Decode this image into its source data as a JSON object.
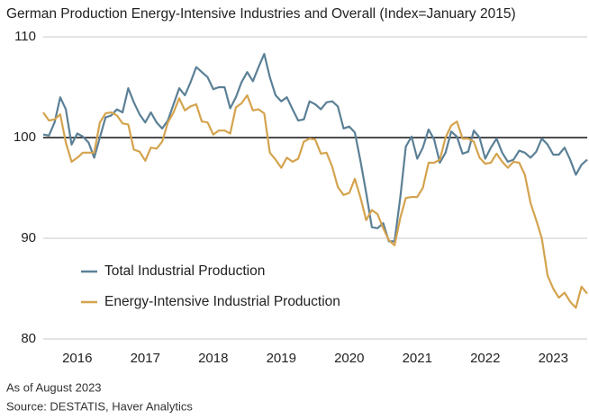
{
  "chart_data": {
    "type": "line",
    "title": "German Production Energy-Intensive Industries and Overall (Index=January 2015)",
    "notes": [
      "As of August 2023",
      "Source: DESTATIS, Haver Analytics"
    ],
    "x": [
      2015.5,
      2015.583,
      2015.667,
      2015.75,
      2015.833,
      2015.917,
      2016,
      2016.083,
      2016.167,
      2016.25,
      2016.333,
      2016.417,
      2016.5,
      2016.583,
      2016.667,
      2016.75,
      2016.833,
      2016.917,
      2017,
      2017.083,
      2017.167,
      2017.25,
      2017.333,
      2017.417,
      2017.5,
      2017.583,
      2017.667,
      2017.75,
      2017.833,
      2017.917,
      2018,
      2018.083,
      2018.167,
      2018.25,
      2018.333,
      2018.417,
      2018.5,
      2018.583,
      2018.667,
      2018.75,
      2018.833,
      2018.917,
      2019,
      2019.083,
      2019.167,
      2019.25,
      2019.333,
      2019.417,
      2019.5,
      2019.583,
      2019.667,
      2019.75,
      2019.833,
      2019.917,
      2020,
      2020.083,
      2020.167,
      2020.25,
      2020.333,
      2020.417,
      2020.5,
      2020.583,
      2020.667,
      2020.75,
      2020.833,
      2020.917,
      2021,
      2021.083,
      2021.167,
      2021.25,
      2021.333,
      2021.417,
      2021.5,
      2021.583,
      2021.667,
      2021.75,
      2021.833,
      2021.917,
      2022,
      2022.083,
      2022.167,
      2022.25,
      2022.333,
      2022.417,
      2022.5,
      2022.583,
      2022.667,
      2022.75,
      2022.833,
      2022.917,
      2023,
      2023.083,
      2023.167,
      2023.25,
      2023.333,
      2023.417,
      2023.5
    ],
    "series": [
      {
        "name": "Total Industrial Production",
        "color": "#5b8096",
        "values": [
          100.3,
          100.2,
          101.5,
          104.0,
          102.8,
          99.3,
          100.4,
          100.1,
          99.5,
          98.0,
          100.0,
          102.0,
          102.2,
          102.8,
          102.5,
          104.9,
          103.5,
          102.3,
          101.5,
          102.5,
          101.5,
          100.9,
          101.7,
          103.3,
          104.9,
          104.2,
          105.5,
          107.0,
          106.5,
          106.0,
          104.8,
          105.0,
          105.0,
          102.9,
          104.0,
          105.5,
          106.5,
          105.6,
          107.0,
          108.3,
          106.0,
          104.2,
          103.6,
          104.0,
          102.8,
          101.7,
          101.8,
          103.6,
          103.3,
          102.8,
          103.5,
          103.6,
          103.1,
          100.9,
          101.1,
          100.5,
          97.6,
          94.5,
          91.1,
          91.0,
          91.5,
          89.7,
          89.7,
          94.0,
          99.1,
          100.1,
          97.9,
          99.0,
          100.8,
          99.8,
          97.5,
          98.5,
          100.6,
          100.1,
          98.4,
          98.6,
          100.7,
          100.0,
          97.9,
          99.0,
          99.9,
          98.5,
          97.6,
          97.8,
          98.7,
          98.5,
          98.0,
          98.6,
          99.9,
          99.3,
          98.3,
          98.3,
          99.0,
          97.8,
          96.3,
          97.3,
          97.8
        ]
      },
      {
        "name": "Energy-Intensive Industrial Production",
        "color": "#d4a34e",
        "values": [
          102.5,
          101.7,
          101.8,
          102.3,
          99.5,
          97.6,
          98.0,
          98.5,
          98.5,
          98.5,
          101.5,
          102.4,
          102.5,
          102.2,
          101.4,
          101.3,
          98.8,
          98.6,
          97.7,
          99.0,
          98.9,
          99.6,
          101.5,
          102.5,
          103.9,
          102.7,
          103.1,
          103.3,
          101.6,
          101.5,
          100.3,
          100.7,
          100.7,
          100.4,
          103.0,
          103.4,
          104.2,
          102.7,
          102.8,
          102.4,
          98.5,
          97.8,
          97.0,
          98.0,
          97.6,
          97.9,
          99.6,
          99.9,
          99.8,
          98.4,
          98.5,
          97.1,
          95.1,
          94.3,
          94.5,
          95.9,
          94.0,
          91.8,
          92.8,
          92.4,
          91.0,
          89.8,
          89.3,
          92.0,
          94.0,
          94.1,
          94.1,
          95.0,
          97.5,
          97.5,
          97.8,
          100.0,
          101.2,
          101.6,
          99.9,
          99.9,
          99.6,
          98.0,
          97.4,
          97.5,
          98.4,
          97.6,
          97.0,
          97.6,
          97.5,
          96.3,
          93.5,
          91.8,
          90.0,
          86.3,
          85.0,
          84.1,
          84.6,
          83.7,
          83.1,
          85.2,
          84.5
        ]
      }
    ],
    "xlim": [
      2015.5,
      2023.5
    ],
    "xticks": [
      2016,
      2017,
      2018,
      2019,
      2020,
      2021,
      2022,
      2023
    ],
    "ylim": [
      80,
      110
    ],
    "yticks": [
      80,
      90,
      100,
      110
    ],
    "reference_line": 100,
    "grid": true,
    "legend": "lower left"
  }
}
